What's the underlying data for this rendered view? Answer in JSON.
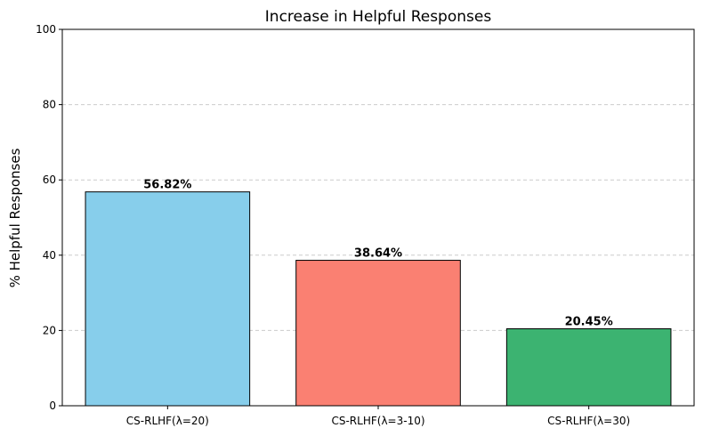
{
  "chart_data": {
    "type": "bar",
    "title": "Increase in Helpful Responses",
    "xlabel": "",
    "ylabel": "% Helpful Responses",
    "categories": [
      "CS-RLHF(λ=20)",
      "CS-RLHF(λ=3-10)",
      "CS-RLHF(λ=30)"
    ],
    "values": [
      56.82,
      38.64,
      20.45
    ],
    "data_labels": [
      "56.82%",
      "38.64%",
      "20.45%"
    ],
    "colors": [
      "#87CEEB",
      "#FA8072",
      "#3CB371"
    ],
    "ylim": [
      0,
      100
    ],
    "yticks": [
      "0",
      "20",
      "40",
      "60",
      "80",
      "100"
    ],
    "grid": "horizontal dashed",
    "legend": "none"
  }
}
